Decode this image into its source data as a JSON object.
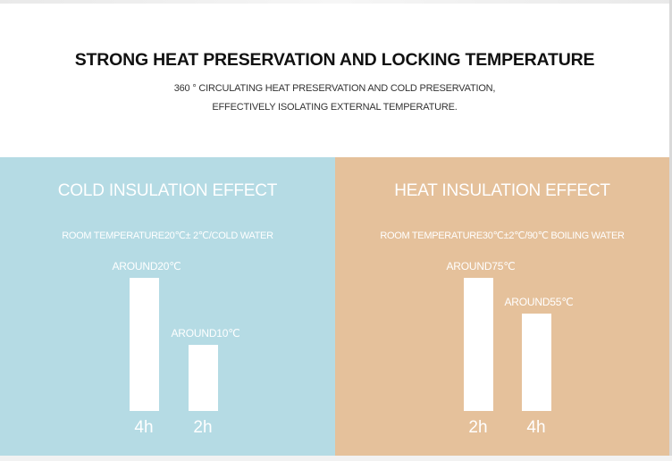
{
  "header": {
    "title": "STRONG HEAT PRESERVATION AND LOCKING TEMPERATURE",
    "subtitle_line1": "360 ° CIRCULATING HEAT PRESERVATION AND COLD PRESERVATION,",
    "subtitle_line2": "EFFECTIVELY ISOLATING EXTERNAL TEMPERATURE."
  },
  "colors": {
    "cold_panel": "#b5dbe4",
    "heat_panel": "#e5c19b",
    "bar": "#ffffff"
  },
  "chart_data": [
    {
      "type": "bar",
      "title": "COLD INSULATION EFFECT",
      "subtitle": "ROOM TEMPERATURE20℃± 2℃/COLD WATER",
      "categories": [
        "4h",
        "2h"
      ],
      "values": [
        20,
        10
      ],
      "data_labels": [
        "AROUND20℃",
        "AROUND10℃"
      ],
      "unit": "℃",
      "ylim": [
        0,
        20
      ],
      "grid": false
    },
    {
      "type": "bar",
      "title": "HEAT INSULATION EFFECT",
      "subtitle": "ROOM TEMPERATURE30℃±2℃/90℃ BOILING WATER",
      "categories": [
        "2h",
        "4h"
      ],
      "values": [
        75,
        55
      ],
      "data_labels": [
        "AROUND75℃",
        "AROUND55℃"
      ],
      "unit": "℃",
      "ylim": [
        0,
        75
      ],
      "grid": false
    }
  ]
}
